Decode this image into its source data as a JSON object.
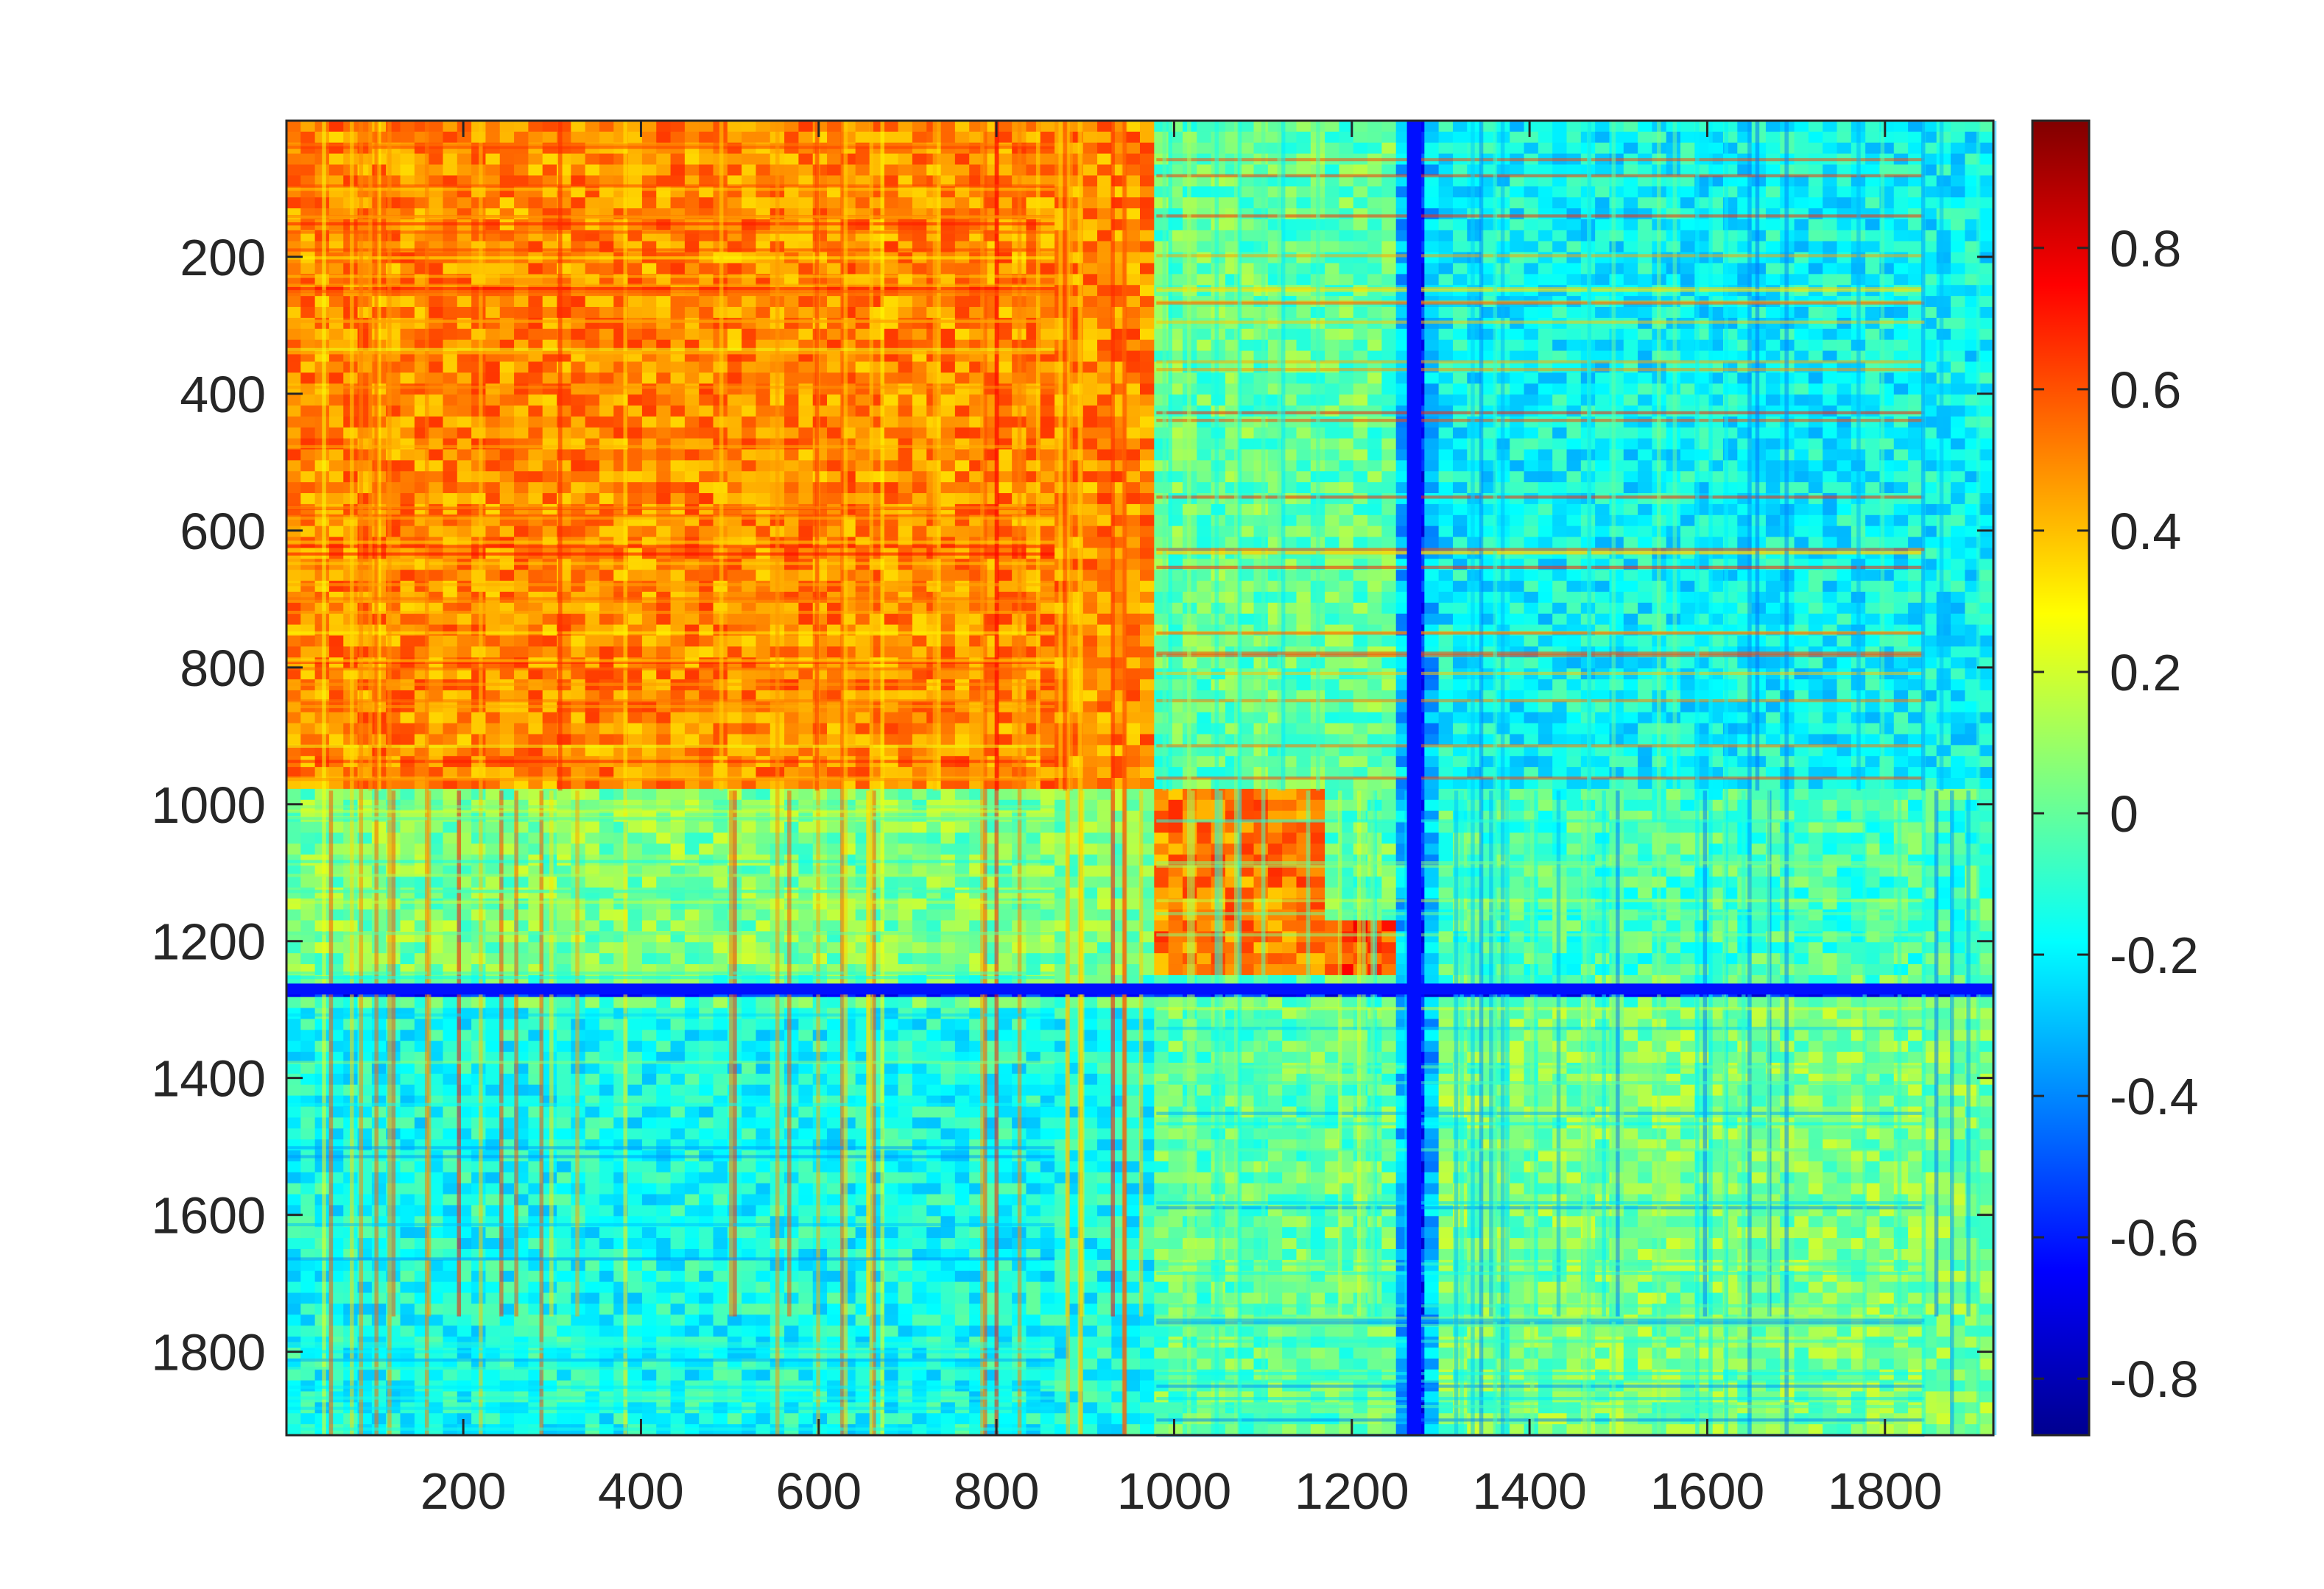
{
  "chart_data": {
    "type": "heatmap",
    "title": "",
    "xlabel": "",
    "ylabel": "",
    "xlim": [
      1,
      1922
    ],
    "ylim": [
      1,
      1922
    ],
    "y_direction": "reverse",
    "x_ticks": [
      200,
      400,
      600,
      800,
      1000,
      1200,
      1400,
      1600,
      1800
    ],
    "y_ticks": [
      200,
      400,
      600,
      800,
      1000,
      1200,
      1400,
      1600,
      1800
    ],
    "x_tick_labels": [
      "200",
      "400",
      "600",
      "800",
      "1000",
      "1200",
      "1400",
      "1600",
      "1800"
    ],
    "y_tick_labels": [
      "200",
      "400",
      "600",
      "800",
      "1000",
      "1200",
      "1400",
      "1600",
      "1800"
    ],
    "colormap": "jet",
    "clim": [
      -0.88,
      0.98
    ],
    "colorbar": {
      "location": "right",
      "ticks": [
        0.8,
        0.6,
        0.4,
        0.2,
        0,
        -0.2,
        -0.4,
        -0.6,
        -0.8
      ],
      "tick_labels": [
        "0.8",
        "0.6",
        "0.4",
        "0.2",
        "0",
        "-0.2",
        "-0.4",
        "-0.6",
        "-0.8"
      ]
    },
    "grid": false,
    "blocks": [
      {
        "x": [
          1,
          980
        ],
        "y": [
          1,
          980
        ],
        "value": 0.5
      },
      {
        "x": [
          980,
          1175
        ],
        "y": [
          980,
          1250
        ],
        "value": 0.52
      },
      {
        "x": [
          1175,
          1245
        ],
        "y": [
          1175,
          1250
        ],
        "value": 0.62
      },
      {
        "x": [
          1245,
          1300
        ],
        "y": [
          1245,
          1300
        ],
        "value": 0.55
      },
      {
        "x": [
          980,
          1245
        ],
        "y": [
          1,
          980
        ],
        "value": 0.0
      },
      {
        "x": [
          1300,
          1922
        ],
        "y": [
          1,
          980
        ],
        "value": -0.18
      },
      {
        "x": [
          1,
          980
        ],
        "y": [
          980,
          1250
        ],
        "value": 0.05
      },
      {
        "x": [
          1300,
          1922
        ],
        "y": [
          980,
          1250
        ],
        "value": -0.05
      },
      {
        "x": [
          1,
          980
        ],
        "y": [
          1300,
          1922
        ],
        "value": -0.15
      },
      {
        "x": [
          980,
          1245
        ],
        "y": [
          1300,
          1922
        ],
        "value": 0.0
      },
      {
        "x": [
          1300,
          1922
        ],
        "y": [
          1300,
          1922
        ],
        "value": 0.05
      },
      {
        "x": [
          1245,
          1300
        ],
        "y": [
          1,
          1922
        ],
        "value": -0.3
      },
      {
        "x": [
          1,
          1922
        ],
        "y": [
          1260,
          1280
        ],
        "value": -0.6
      },
      {
        "x": [
          1260,
          1280
        ],
        "y": [
          1,
          1922
        ],
        "value": -0.6
      }
    ]
  }
}
